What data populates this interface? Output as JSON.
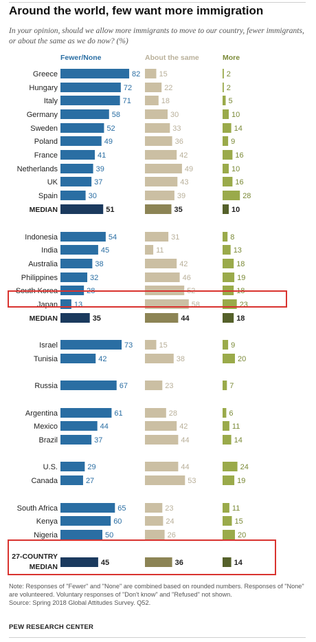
{
  "title": "Around the world, few want more immigration",
  "subtitle": "In your opinion, should we allow more immigrants to move to our country, fewer immigrants, or about the same as we do now? (%)",
  "colors": {
    "fewer": "#2a6ea3",
    "fewer_median": "#1b3a5e",
    "same": "#cbbfa3",
    "same_median": "#8c8455",
    "more": "#9aaa4a",
    "more_median": "#55612a",
    "highlight": "#d9332f",
    "fewer_text": "#2a6ea3",
    "same_text": "#b9b09a",
    "more_text": "#7b8a37"
  },
  "note": "Note: Responses of \"Fewer\" and \"None\" are combined based on rounded numbers. Responses of \"None\" are volunteered. Voluntary responses of \"Don't know\" and \"Refused\" not shown.",
  "source": "Source: Spring 2018 Global Attitudes Survey. Q52.",
  "brand": "PEW RESEARCH CENTER",
  "chart_data": {
    "type": "bar",
    "orientation": "horizontal",
    "series": [
      {
        "name": "Fewer/None",
        "key": "fewer"
      },
      {
        "name": "About the same",
        "key": "same"
      },
      {
        "name": "More",
        "key": "more"
      }
    ],
    "rows": [
      {
        "label": "Greece",
        "fewer": 82,
        "same": 15,
        "more": 2
      },
      {
        "label": "Hungary",
        "fewer": 72,
        "same": 22,
        "more": 2
      },
      {
        "label": "Italy",
        "fewer": 71,
        "same": 18,
        "more": 5
      },
      {
        "label": "Germany",
        "fewer": 58,
        "same": 30,
        "more": 10
      },
      {
        "label": "Sweden",
        "fewer": 52,
        "same": 33,
        "more": 14
      },
      {
        "label": "Poland",
        "fewer": 49,
        "same": 36,
        "more": 9
      },
      {
        "label": "France",
        "fewer": 41,
        "same": 42,
        "more": 16
      },
      {
        "label": "Netherlands",
        "fewer": 39,
        "same": 49,
        "more": 10
      },
      {
        "label": "UK",
        "fewer": 37,
        "same": 43,
        "more": 16
      },
      {
        "label": "Spain",
        "fewer": 30,
        "same": 39,
        "more": 28
      },
      {
        "label": "MEDIAN",
        "fewer": 51,
        "same": 35,
        "more": 10,
        "median": true
      },
      {
        "label": "Indonesia",
        "fewer": 54,
        "same": 31,
        "more": 8
      },
      {
        "label": "India",
        "fewer": 45,
        "same": 11,
        "more": 13
      },
      {
        "label": "Australia",
        "fewer": 38,
        "same": 42,
        "more": 18
      },
      {
        "label": "Philippines",
        "fewer": 32,
        "same": 46,
        "more": 19
      },
      {
        "label": "South Korea",
        "fewer": 28,
        "same": 52,
        "more": 18
      },
      {
        "label": "Japan",
        "fewer": 13,
        "same": 58,
        "more": 23,
        "highlight": true
      },
      {
        "label": "MEDIAN",
        "fewer": 35,
        "same": 44,
        "more": 18,
        "median": true
      },
      {
        "label": "Israel",
        "fewer": 73,
        "same": 15,
        "more": 9
      },
      {
        "label": "Tunisia",
        "fewer": 42,
        "same": 38,
        "more": 20
      },
      {
        "label": "Russia",
        "fewer": 67,
        "same": 23,
        "more": 7
      },
      {
        "label": "Argentina",
        "fewer": 61,
        "same": 28,
        "more": 6
      },
      {
        "label": "Mexico",
        "fewer": 44,
        "same": 42,
        "more": 11
      },
      {
        "label": "Brazil",
        "fewer": 37,
        "same": 44,
        "more": 14
      },
      {
        "label": "U.S.",
        "fewer": 29,
        "same": 44,
        "more": 24
      },
      {
        "label": "Canada",
        "fewer": 27,
        "same": 53,
        "more": 19
      },
      {
        "label": "South Africa",
        "fewer": 65,
        "same": 23,
        "more": 11
      },
      {
        "label": "Kenya",
        "fewer": 60,
        "same": 24,
        "more": 15
      },
      {
        "label": "Nigeria",
        "fewer": 50,
        "same": 26,
        "more": 20
      },
      {
        "label": "27-COUNTRY MEDIAN",
        "fewer": 45,
        "same": 36,
        "more": 14,
        "median": true,
        "highlight": true
      }
    ]
  }
}
